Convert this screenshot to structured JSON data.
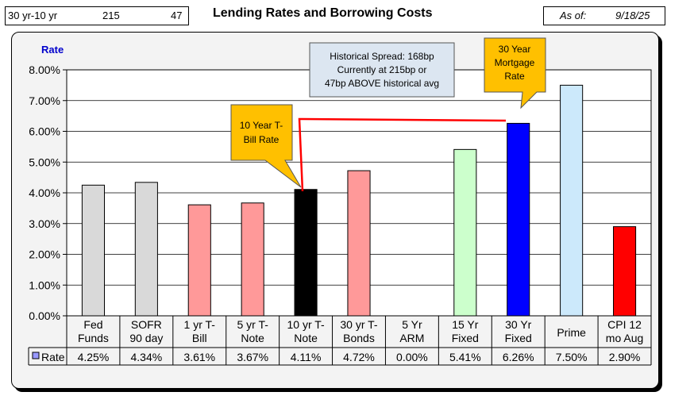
{
  "header": {
    "spread_label": "30 yr-10 yr",
    "spread_bp": "215",
    "spread_diff": "47",
    "title": "Lending Rates and Borrowing Costs",
    "asof_label": "As of:",
    "asof_date": "9/18/25"
  },
  "chart_data": {
    "type": "bar",
    "ylabel": "Rate",
    "ylim": [
      0,
      8
    ],
    "yticks": [
      "0.00%",
      "1.00%",
      "2.00%",
      "3.00%",
      "4.00%",
      "5.00%",
      "6.00%",
      "7.00%",
      "8.00%"
    ],
    "grid": true,
    "categories": [
      [
        "Fed",
        "Funds"
      ],
      [
        "SOFR",
        "90 day"
      ],
      [
        "1 yr  T-",
        "Bill"
      ],
      [
        "5 yr T-",
        "Note"
      ],
      [
        "10 yr T-",
        "Note"
      ],
      [
        "30 yr T-",
        "Bonds"
      ],
      [
        "5 Yr",
        "ARM"
      ],
      [
        "15 Yr",
        "Fixed"
      ],
      [
        "30 Yr",
        "Fixed"
      ],
      [
        "Prime"
      ],
      [
        "CPI 12",
        "mo Aug"
      ]
    ],
    "series": [
      {
        "name": "Rate",
        "values": [
          4.25,
          4.34,
          3.61,
          3.67,
          4.11,
          4.72,
          0.0,
          5.41,
          6.26,
          7.5,
          2.9
        ],
        "labels": [
          "4.25%",
          "4.34%",
          "3.61%",
          "3.67%",
          "4.11%",
          "4.72%",
          "0.00%",
          "5.41%",
          "6.26%",
          "7.50%",
          "2.90%"
        ],
        "colors": [
          "#d9d9d9",
          "#d9d9d9",
          "#ff9999",
          "#ff9999",
          "#000000",
          "#ff9999",
          "#ff9999",
          "#ccffcc",
          "#0000ff",
          "#cce9fb",
          "#ff0000"
        ]
      }
    ],
    "legend_swatch_color": "#9999ff",
    "annotations": {
      "historical": [
        "Historical Spread: 168bp",
        "Currently at 215bp  or",
        "47bp ABOVE historical avg"
      ],
      "ten_year": [
        "10 Year T-",
        "Bill Rate"
      ],
      "thirty_year": [
        "30 Year",
        "Mortgage",
        "Rate"
      ],
      "callout_color": "#ffc000",
      "note_color": "#dce6f1",
      "connector_color": "#ff0000"
    }
  }
}
